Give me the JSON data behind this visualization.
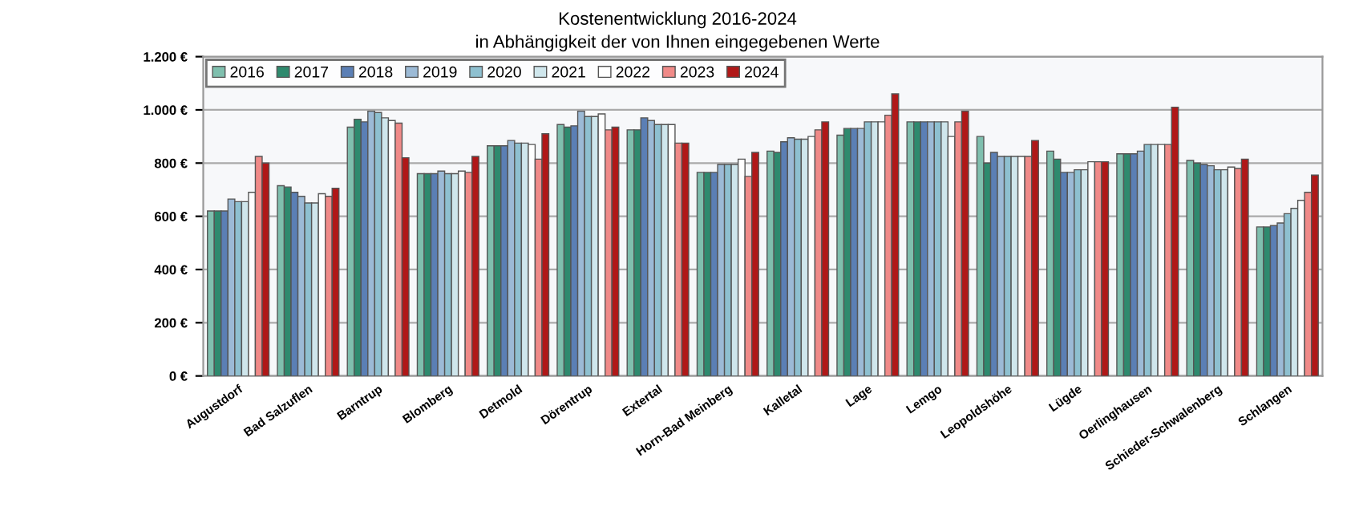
{
  "chart_data": {
    "type": "bar",
    "title": "Kostenentwicklung 2016-2024",
    "subtitle": "in Abhängigkeit der von Ihnen eingegebenen Werte",
    "categories": [
      "Augustdorf",
      "Bad Salzuflen",
      "Barntrup",
      "Blomberg",
      "Detmold",
      "Dörentrup",
      "Extertal",
      "Horn-Bad Meinberg",
      "Kalletal",
      "Lage",
      "Lemgo",
      "Leopoldshöhe",
      "Lügde",
      "Oerlinghausen",
      "Schieder-Schwalenberg",
      "Schlangen"
    ],
    "series": [
      {
        "name": "2016",
        "color": "#7fbfae",
        "values": [
          620,
          715,
          935,
          760,
          865,
          945,
          925,
          765,
          845,
          905,
          955,
          900,
          845,
          835,
          810,
          560
        ]
      },
      {
        "name": "2017",
        "color": "#2e8a6e",
        "values": [
          620,
          710,
          965,
          760,
          865,
          935,
          925,
          765,
          840,
          930,
          955,
          800,
          815,
          835,
          800,
          560
        ]
      },
      {
        "name": "2018",
        "color": "#5b7fb5",
        "values": [
          620,
          690,
          955,
          760,
          865,
          940,
          970,
          765,
          880,
          930,
          955,
          840,
          765,
          835,
          795,
          565
        ]
      },
      {
        "name": "2019",
        "color": "#9cbad6",
        "values": [
          665,
          675,
          995,
          770,
          885,
          995,
          960,
          795,
          895,
          930,
          955,
          825,
          765,
          845,
          790,
          575
        ]
      },
      {
        "name": "2020",
        "color": "#8ec0d0",
        "values": [
          655,
          650,
          990,
          760,
          875,
          975,
          945,
          795,
          890,
          955,
          955,
          825,
          775,
          870,
          775,
          610
        ]
      },
      {
        "name": "2021",
        "color": "#cfe6ec",
        "values": [
          655,
          650,
          970,
          760,
          875,
          975,
          945,
          795,
          890,
          955,
          955,
          825,
          775,
          870,
          775,
          630
        ]
      },
      {
        "name": "2022",
        "color": "#ffffff",
        "values": [
          690,
          685,
          960,
          770,
          870,
          985,
          945,
          815,
          900,
          955,
          900,
          825,
          805,
          870,
          785,
          660
        ]
      },
      {
        "name": "2023",
        "color": "#f08a88",
        "values": [
          825,
          675,
          950,
          765,
          815,
          925,
          875,
          750,
          925,
          980,
          955,
          825,
          805,
          870,
          780,
          690
        ]
      },
      {
        "name": "2024",
        "color": "#b01818",
        "values": [
          800,
          705,
          820,
          825,
          910,
          935,
          875,
          840,
          955,
          1060,
          995,
          885,
          805,
          1010,
          815,
          755
        ]
      }
    ],
    "ylim": [
      0,
      1200
    ],
    "yticks": [
      {
        "value": 0,
        "label": "0 €"
      },
      {
        "value": 200,
        "label": "200 €"
      },
      {
        "value": 400,
        "label": "400 €"
      },
      {
        "value": 600,
        "label": "600 €"
      },
      {
        "value": 800,
        "label": "800 €"
      },
      {
        "value": 1000,
        "label": "1.000 €"
      },
      {
        "value": 1200,
        "label": "1.200 €"
      }
    ],
    "grid": "y",
    "legend": "top left"
  }
}
